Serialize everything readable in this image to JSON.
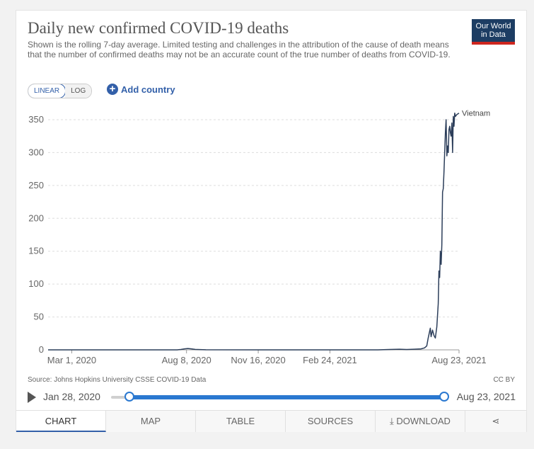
{
  "header": {
    "title": "Daily new confirmed COVID-19 deaths",
    "subtitle": "Shown is the rolling 7-day average. Limited testing and challenges in the attribution of the cause of death means that the number of confirmed deaths may not be an accurate count of the true number of deaths from COVID-19."
  },
  "logo": {
    "line1": "Our World",
    "line2": "in Data"
  },
  "controls": {
    "linear_label": "LINEAR",
    "log_label": "LOG",
    "add_country_label": "Add country",
    "add_icon_glyph": "+"
  },
  "chart_data": {
    "type": "line",
    "title": "Daily new confirmed COVID-19 deaths",
    "xlabel": "",
    "ylabel": "",
    "ylim": [
      0,
      350
    ],
    "y_ticks": [
      0,
      50,
      100,
      150,
      200,
      250,
      300,
      350
    ],
    "x_ticks": [
      {
        "label": "Mar 1, 2020",
        "day": 33
      },
      {
        "label": "Aug 8, 2020",
        "day": 193
      },
      {
        "label": "Nov 16, 2020",
        "day": 293
      },
      {
        "label": "Feb 24, 2021",
        "day": 393
      },
      {
        "label": "Aug 23, 2021",
        "day": 573
      }
    ],
    "xlim": [
      0,
      573
    ],
    "series": [
      {
        "name": "Vietnam",
        "color": "#2c3e5a",
        "points": [
          [
            0,
            0
          ],
          [
            180,
            0
          ],
          [
            185,
            0.5
          ],
          [
            190,
            1.5
          ],
          [
            195,
            2
          ],
          [
            200,
            1.5
          ],
          [
            205,
            0.7
          ],
          [
            212,
            0.4
          ],
          [
            220,
            0.1
          ],
          [
            300,
            0
          ],
          [
            460,
            0
          ],
          [
            475,
            0.5
          ],
          [
            490,
            1
          ],
          [
            500,
            0.5
          ],
          [
            510,
            1
          ],
          [
            520,
            1.5
          ],
          [
            525,
            3
          ],
          [
            528,
            6
          ],
          [
            530,
            18
          ],
          [
            532,
            28
          ],
          [
            533,
            33
          ],
          [
            534,
            20
          ],
          [
            536,
            30
          ],
          [
            538,
            22
          ],
          [
            540,
            18
          ],
          [
            542,
            35
          ],
          [
            544,
            70
          ],
          [
            545,
            120
          ],
          [
            546,
            110
          ],
          [
            547,
            150
          ],
          [
            548,
            130
          ],
          [
            549,
            160
          ],
          [
            550,
            240
          ],
          [
            551,
            245
          ],
          [
            552,
            270
          ],
          [
            553,
            300
          ],
          [
            554,
            330
          ],
          [
            555,
            350
          ],
          [
            556,
            295
          ],
          [
            557,
            310
          ],
          [
            558,
            300
          ],
          [
            559,
            335
          ],
          [
            560,
            340
          ],
          [
            561,
            330
          ],
          [
            562,
            325
          ],
          [
            563,
            345
          ],
          [
            564,
            300
          ],
          [
            565,
            355
          ],
          [
            566,
            340
          ],
          [
            567,
            360
          ],
          [
            568,
            355
          ],
          [
            570,
            358
          ],
          [
            573,
            360
          ]
        ]
      }
    ]
  },
  "footer": {
    "source": "Source: Johns Hopkins University CSSE COVID-19 Data",
    "license": "CC BY"
  },
  "timeline": {
    "start_date": "Jan 28, 2020",
    "end_date": "Aug 23, 2021"
  },
  "tabs": [
    {
      "label": "CHART"
    },
    {
      "label": "MAP"
    },
    {
      "label": "TABLE"
    },
    {
      "label": "SOURCES"
    },
    {
      "label": "⤓ DOWNLOAD"
    },
    {
      "label": "⋖"
    }
  ]
}
